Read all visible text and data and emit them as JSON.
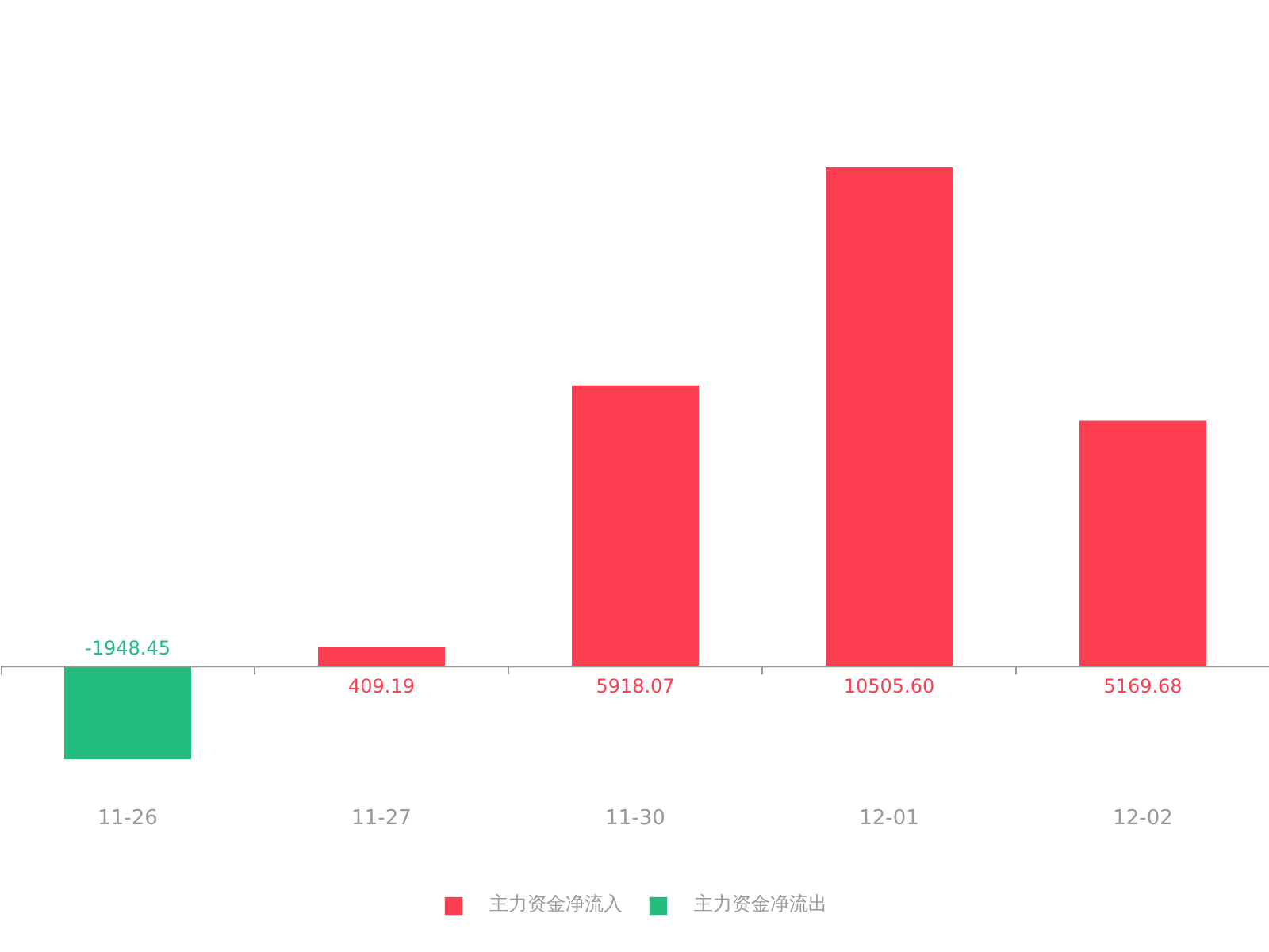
{
  "chart_data": {
    "type": "bar",
    "categories": [
      "11-26",
      "11-27",
      "11-30",
      "12-01",
      "12-02"
    ],
    "series": [
      {
        "name": "主力资金净流入",
        "color": "#fd3e50",
        "values": [
          null,
          409.19,
          5918.07,
          10505.6,
          5169.68
        ],
        "value_labels": [
          null,
          "409.19",
          "5918.07",
          "10505.60",
          "5169.68"
        ]
      },
      {
        "name": "主力资金净流出",
        "color": "#21bc7e",
        "values": [
          -1948.45,
          null,
          null,
          null,
          null
        ],
        "value_labels": [
          "-1948.45",
          null,
          null,
          null,
          null
        ]
      }
    ],
    "stacked": true,
    "tick_labels": "x",
    "legend": "bottom"
  }
}
